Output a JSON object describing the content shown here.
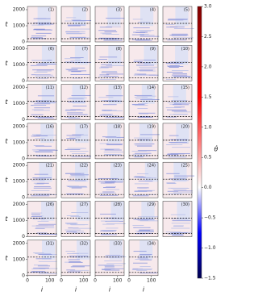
{
  "chart_data": {
    "type": "heatmap-grid",
    "panels": [
      "(1)",
      "(2)",
      "(3)",
      "(4)",
      "(5)",
      "(6)",
      "(7)",
      "(8)",
      "(9)",
      "(10)",
      "(11)",
      "(12)",
      "(13)",
      "(14)",
      "(15)",
      "(16)",
      "(17)",
      "(18)",
      "(19)",
      "(20)",
      "(21)",
      "(22)",
      "(23)",
      "(24)",
      "(25)",
      "(26)",
      "(27)",
      "(28)",
      "(29)",
      "(30)",
      "(31)",
      "(32)",
      "(33)",
      "(34)"
    ],
    "xlabel": "i",
    "ylabel": "t",
    "xlim": [
      0,
      130
    ],
    "xticks": [
      0,
      100
    ],
    "ylim": [
      0,
      2200
    ],
    "yticks": [
      0,
      1000,
      2000
    ],
    "hlines": [
      200,
      1150
    ],
    "colorbar": {
      "label": "θ̇",
      "lim": [
        -1.5,
        3.0
      ],
      "ticks": [
        {
          "value": -1.5,
          "label": "−1.5"
        },
        {
          "value": -1.0,
          "label": "−1.0"
        },
        {
          "value": -0.5,
          "label": "−0.5"
        },
        {
          "value": 0.0,
          "label": "0.0"
        },
        0.5,
        {
          "value": 1.0,
          "label": "1.0"
        },
        1.5,
        {
          "value": 2.0,
          "label": "2.0"
        },
        2.5,
        {
          "value": 3.0,
          "label": "3.0"
        }
      ],
      "colormap": [
        "#00004c",
        "#0000ff",
        "#ffffff",
        "#ff0000",
        "#800000"
      ]
    }
  }
}
